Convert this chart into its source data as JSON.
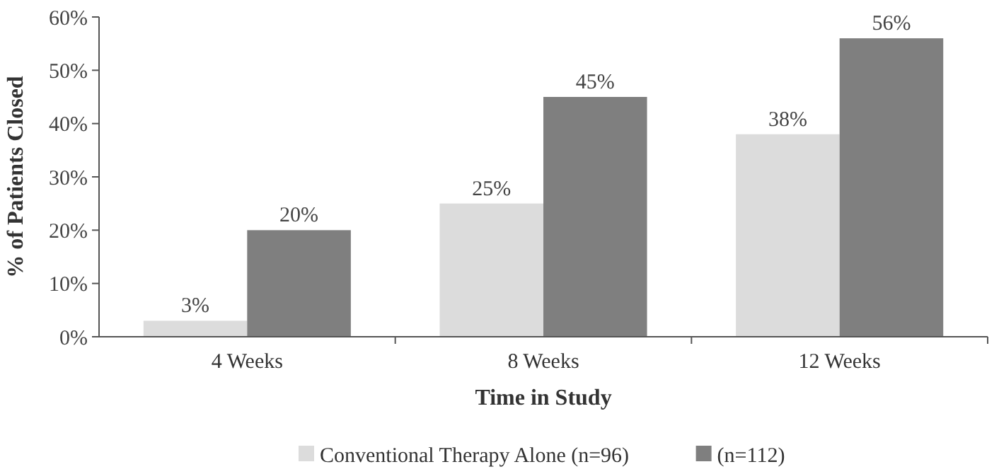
{
  "chart_data": {
    "type": "bar",
    "xlabel": "Time in Study",
    "ylabel": "% of Patients Closed",
    "categories": [
      "4 Weeks",
      "8 Weeks",
      "12 Weeks"
    ],
    "series": [
      {
        "name": "Conventional Therapy Alone (n=96)",
        "color": "#dcdcdc",
        "values": [
          3,
          25,
          38
        ],
        "value_labels": [
          "3%",
          "25%",
          "38%"
        ]
      },
      {
        "name": "(n=112)",
        "color": "#7f7f7f",
        "values": [
          20,
          45,
          56
        ],
        "value_labels": [
          "20%",
          "45%",
          "56%"
        ]
      }
    ],
    "ylim": [
      0,
      60
    ],
    "yticks": [
      {
        "value": 0,
        "label": "0%"
      },
      {
        "value": 10,
        "label": "10%"
      },
      {
        "value": 20,
        "label": "20%"
      },
      {
        "value": 30,
        "label": "30%"
      },
      {
        "value": 40,
        "label": "40%"
      },
      {
        "value": 50,
        "label": "50%"
      },
      {
        "value": 60,
        "label": "60%"
      }
    ],
    "grid": false,
    "legend": "bottom"
  }
}
